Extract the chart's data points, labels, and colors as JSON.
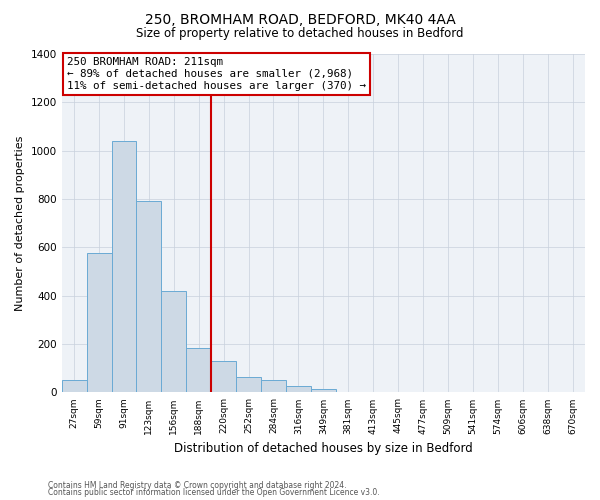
{
  "title": "250, BROMHAM ROAD, BEDFORD, MK40 4AA",
  "subtitle": "Size of property relative to detached houses in Bedford",
  "xlabel": "Distribution of detached houses by size in Bedford",
  "ylabel": "Number of detached properties",
  "bar_labels": [
    "27sqm",
    "59sqm",
    "91sqm",
    "123sqm",
    "156sqm",
    "188sqm",
    "220sqm",
    "252sqm",
    "284sqm",
    "316sqm",
    "349sqm",
    "381sqm",
    "413sqm",
    "445sqm",
    "477sqm",
    "509sqm",
    "541sqm",
    "574sqm",
    "606sqm",
    "638sqm",
    "670sqm"
  ],
  "bar_heights": [
    50,
    575,
    1040,
    790,
    420,
    185,
    130,
    62,
    50,
    25,
    15,
    0,
    0,
    0,
    0,
    0,
    0,
    0,
    0,
    0,
    0
  ],
  "bar_color": "#cdd9e5",
  "bar_edge_color": "#6aaad4",
  "vline_color": "#cc0000",
  "annotation_box_text": "250 BROMHAM ROAD: 211sqm\n← 89% of detached houses are smaller (2,968)\n11% of semi-detached houses are larger (370) →",
  "annotation_box_color": "#cc0000",
  "ylim": [
    0,
    1400
  ],
  "yticks": [
    0,
    200,
    400,
    600,
    800,
    1000,
    1200,
    1400
  ],
  "footer_line1": "Contains HM Land Registry data © Crown copyright and database right 2024.",
  "footer_line2": "Contains public sector information licensed under the Open Government Licence v3.0.",
  "background_color": "#ffffff",
  "plot_bg_color": "#eef2f7",
  "grid_color": "#c8d0dc"
}
